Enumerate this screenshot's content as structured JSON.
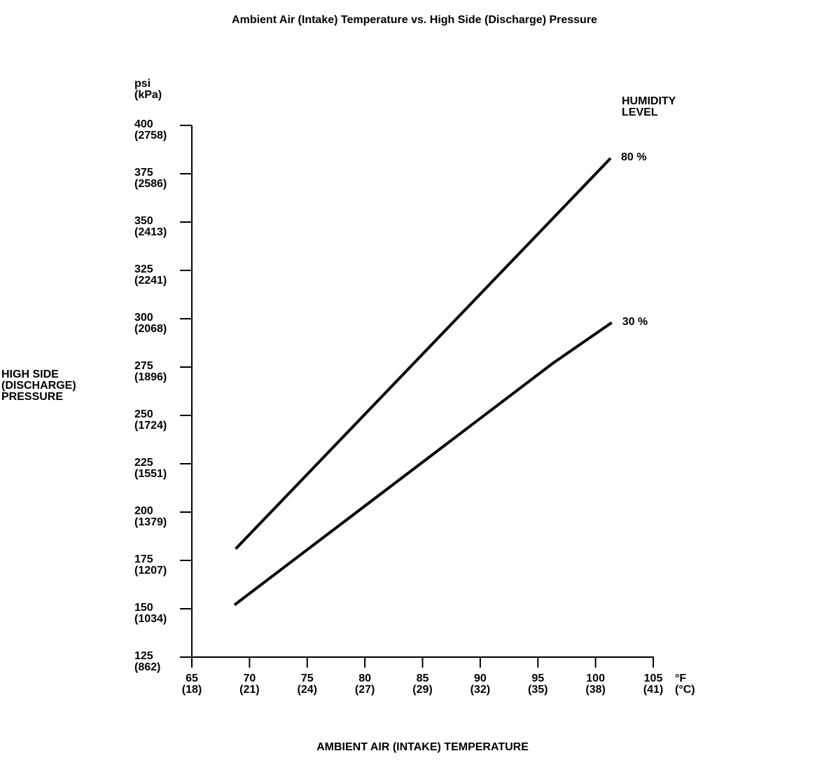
{
  "ink_color": "#000000",
  "background_color": "#ffffff",
  "chart_data": {
    "type": "line",
    "title": "Ambient Air (Intake) Temperature vs. High Side (Discharge) Pressure",
    "grid": false,
    "x_axis": {
      "title": "AMBIENT AIR (INTAKE) TEMPERATURE",
      "unit_lines": [
        "°F",
        "(°C)"
      ],
      "range_f": [
        65,
        105
      ],
      "ticks": [
        {
          "f": 65,
          "f_label": "65",
          "c_label": "(18)"
        },
        {
          "f": 70,
          "f_label": "70",
          "c_label": "(21)"
        },
        {
          "f": 75,
          "f_label": "75",
          "c_label": "(24)"
        },
        {
          "f": 80,
          "f_label": "80",
          "c_label": "(27)"
        },
        {
          "f": 85,
          "f_label": "85",
          "c_label": "(29)"
        },
        {
          "f": 90,
          "f_label": "90",
          "c_label": "(32)"
        },
        {
          "f": 95,
          "f_label": "95",
          "c_label": "(35)"
        },
        {
          "f": 100,
          "f_label": "100",
          "c_label": "(38)"
        },
        {
          "f": 105,
          "f_label": "105",
          "c_label": "(41)"
        }
      ]
    },
    "y_axis": {
      "title_lines": [
        "HIGH SIDE",
        "(DISCHARGE)",
        "PRESSURE"
      ],
      "unit_lines": [
        "psi",
        "(kPa)"
      ],
      "range_psi": [
        125,
        400
      ],
      "ticks": [
        {
          "psi": 400,
          "psi_label": "400",
          "kpa_label": "(2758)"
        },
        {
          "psi": 375,
          "psi_label": "375",
          "kpa_label": "(2586)"
        },
        {
          "psi": 350,
          "psi_label": "350",
          "kpa_label": "(2413)"
        },
        {
          "psi": 325,
          "psi_label": "325",
          "kpa_label": "(2241)"
        },
        {
          "psi": 300,
          "psi_label": "300",
          "kpa_label": "(2068)"
        },
        {
          "psi": 275,
          "psi_label": "275",
          "kpa_label": "(1896)"
        },
        {
          "psi": 250,
          "psi_label": "250",
          "kpa_label": "(1724)"
        },
        {
          "psi": 225,
          "psi_label": "225",
          "kpa_label": "(1551)"
        },
        {
          "psi": 200,
          "psi_label": "200",
          "kpa_label": "(1379)"
        },
        {
          "psi": 175,
          "psi_label": "175",
          "kpa_label": "(1207)"
        },
        {
          "psi": 150,
          "psi_label": "150",
          "kpa_label": "(1034)"
        },
        {
          "psi": 125,
          "psi_label": "125",
          "kpa_label": "(862)"
        }
      ]
    },
    "legend": {
      "title_lines": [
        "HUMIDITY",
        "LEVEL"
      ],
      "position": "top-right"
    },
    "series": [
      {
        "name": "80 %",
        "humidity_percent": 80,
        "points_f_psi": [
          [
            68.8,
            181
          ],
          [
            101.3,
            383
          ]
        ]
      },
      {
        "name": "30 %",
        "humidity_percent": 30,
        "points_f_psi": [
          [
            68.7,
            152
          ],
          [
            96.3,
            277
          ],
          [
            101.4,
            298
          ]
        ]
      }
    ]
  }
}
